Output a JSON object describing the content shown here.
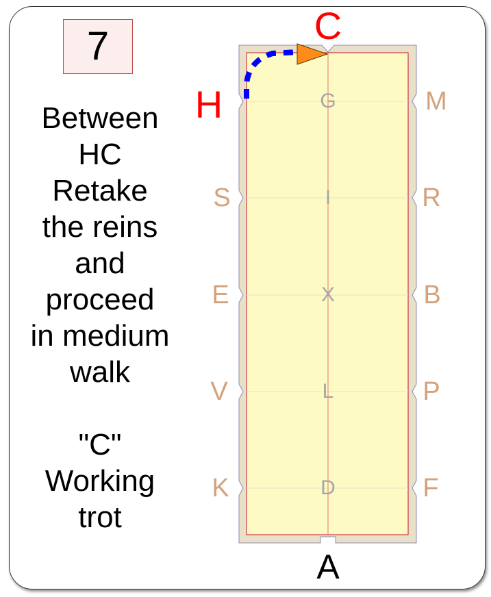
{
  "movement_number": "7",
  "instructions": [
    "Between",
    "HC",
    "Retake",
    "the reins",
    "and",
    "proceed",
    "in medium",
    "walk",
    "",
    "\"C\"",
    "Working",
    "trot"
  ],
  "letters": {
    "top": "C",
    "bottom": "A",
    "highlight": "H",
    "left_side": [
      "S",
      "E",
      "V",
      "K"
    ],
    "right_side": [
      "M",
      "R",
      "B",
      "P",
      "F"
    ],
    "centerline": [
      "G",
      "I",
      "X",
      "L",
      "D"
    ]
  },
  "colors": {
    "arena_fill": "#fdfbc3",
    "arena_border": "#e8e0c8",
    "centerline": "#ee7070",
    "side_letter": "#d4a27c",
    "center_letter": "#a6a6a6",
    "highlight_letter": "#ff0000",
    "path": "#0000ff",
    "arrow": "#ff8c1a"
  }
}
